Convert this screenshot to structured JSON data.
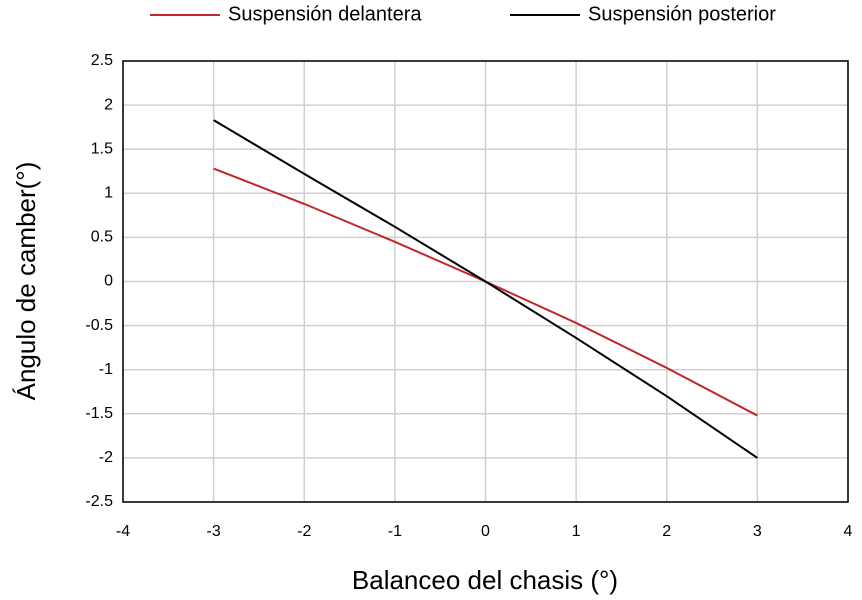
{
  "chart_data": {
    "type": "line",
    "x_label": "Balanceo del chasis (°)",
    "y_label": "Ángulo de camber(°)",
    "x": [
      -3,
      -2,
      -1,
      0,
      1,
      2,
      3
    ],
    "series": [
      {
        "name": "Suspensión delantera",
        "color": "#c0272d",
        "values": [
          1.28,
          0.88,
          0.45,
          0,
          -0.47,
          -0.98,
          -1.52
        ]
      },
      {
        "name": "Suspensión posterior",
        "color": "#000000",
        "values": [
          1.83,
          1.22,
          0.62,
          0,
          -0.64,
          -1.3,
          -2.0
        ]
      }
    ],
    "xlim": [
      -4,
      4
    ],
    "xticks": [
      -4,
      -3,
      -2,
      -1,
      0,
      1,
      2,
      3,
      4
    ],
    "ylim": [
      -2.5,
      2.5
    ],
    "yticks": [
      -2.5,
      -2,
      -1.5,
      -1,
      -0.5,
      0,
      0.5,
      1,
      1.5,
      2,
      2.5
    ],
    "grid": true,
    "legend": "top"
  }
}
